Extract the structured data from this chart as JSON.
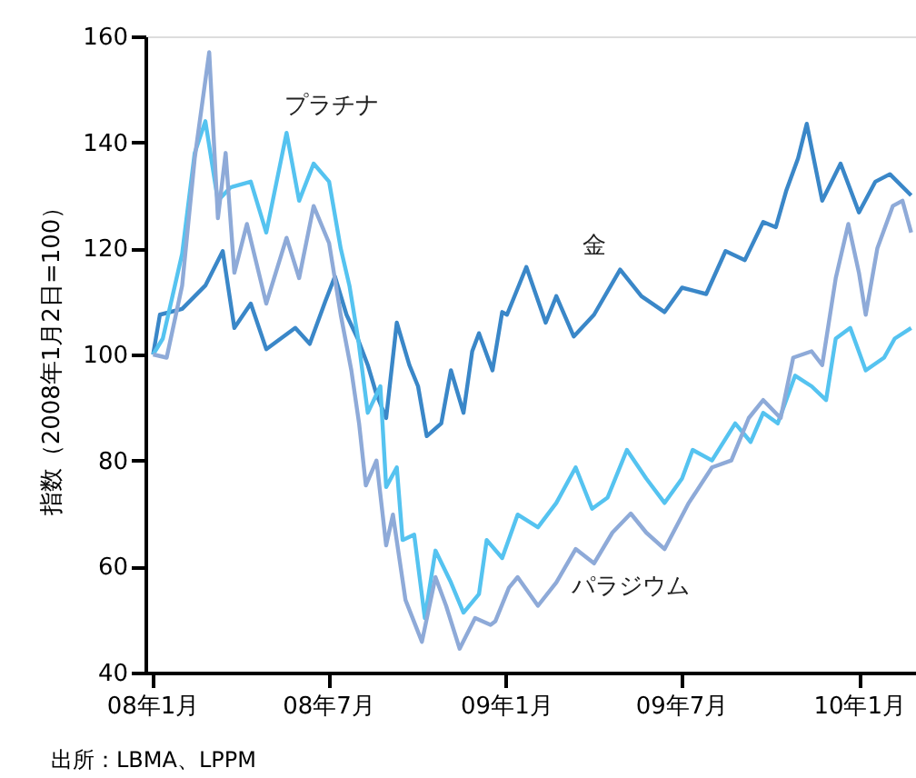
{
  "chart_data": {
    "type": "line",
    "ylabel": "指数（2008年1月2日=100）",
    "annotations": [
      "出所：LBMA、LPPM"
    ],
    "xlim": [
      "2007-12-25",
      "2010-03-01"
    ],
    "xticks": [
      {
        "value": "2008-01-01",
        "label": "08年1月"
      },
      {
        "value": "2008-07-01",
        "label": "08年7月"
      },
      {
        "value": "2009-01-01",
        "label": "09年1月"
      },
      {
        "value": "2009-07-01",
        "label": "09年7月"
      },
      {
        "value": "2010-01-01",
        "label": "10年1月"
      }
    ],
    "ylim": [
      40,
      160
    ],
    "yticks": [
      40,
      60,
      80,
      100,
      120,
      140,
      160
    ],
    "grid": false,
    "legend": false,
    "marker": "none",
    "line_style": "solid",
    "series": [
      {
        "name": "金",
        "color": "#3a87c8",
        "x": [
          "2008-01-02",
          "2008-01-09",
          "2008-02-01",
          "2008-02-25",
          "2008-03-14",
          "2008-03-26",
          "2008-04-12",
          "2008-04-28",
          "2008-05-28",
          "2008-06-12",
          "2008-06-28",
          "2008-07-08",
          "2008-07-20",
          "2008-08-01",
          "2008-08-11",
          "2008-08-20",
          "2008-08-30",
          "2008-09-10",
          "2008-09-23",
          "2008-10-02",
          "2008-10-11",
          "2008-10-26",
          "2008-11-05",
          "2008-11-18",
          "2008-11-27",
          "2008-12-04",
          "2008-12-18",
          "2008-12-28",
          "2009-01-02",
          "2009-01-22",
          "2009-02-11",
          "2009-02-22",
          "2009-03-12",
          "2009-04-02",
          "2009-04-29",
          "2009-05-21",
          "2009-06-14",
          "2009-07-02",
          "2009-07-27",
          "2009-08-16",
          "2009-09-05",
          "2009-09-24",
          "2009-10-07",
          "2009-10-18",
          "2009-10-30",
          "2009-11-08",
          "2009-11-24",
          "2009-12-13",
          "2010-01-01",
          "2010-01-18",
          "2010-02-02",
          "2010-02-24"
        ],
        "values": [
          100,
          107.5,
          108.6,
          113,
          119.5,
          105,
          109.6,
          101,
          105,
          102,
          110,
          114.7,
          107.5,
          102.8,
          98,
          92.5,
          88,
          106,
          98,
          94,
          84.6,
          87,
          97,
          89,
          100.6,
          104,
          97,
          108,
          107.5,
          116.5,
          106,
          111,
          103.4,
          107.5,
          116,
          111,
          108,
          112.6,
          111.4,
          119.5,
          117.8,
          125,
          124,
          131,
          137,
          143.5,
          129,
          136,
          126.8,
          132.6,
          134,
          130
        ]
      },
      {
        "name": "プラチナ",
        "color": "#55c3f0",
        "x": [
          "2008-01-02",
          "2008-01-12",
          "2008-02-01",
          "2008-02-14",
          "2008-02-25",
          "2008-03-09",
          "2008-03-22",
          "2008-04-12",
          "2008-04-28",
          "2008-05-19",
          "2008-06-01",
          "2008-06-16",
          "2008-07-02",
          "2008-07-14",
          "2008-07-23",
          "2008-08-01",
          "2008-08-11",
          "2008-08-24",
          "2008-08-30",
          "2008-09-10",
          "2008-09-16",
          "2008-09-28",
          "2008-10-09",
          "2008-10-20",
          "2008-11-05",
          "2008-11-18",
          "2008-12-04",
          "2008-12-12",
          "2008-12-28",
          "2009-01-13",
          "2009-02-03",
          "2009-02-22",
          "2009-03-14",
          "2009-03-31",
          "2009-04-16",
          "2009-05-06",
          "2009-05-26",
          "2009-06-14",
          "2009-07-02",
          "2009-07-13",
          "2009-08-02",
          "2009-08-26",
          "2009-09-11",
          "2009-09-24",
          "2009-10-09",
          "2009-10-27",
          "2009-11-13",
          "2009-11-28",
          "2009-12-08",
          "2009-12-23",
          "2010-01-08",
          "2010-01-27",
          "2010-02-07",
          "2010-02-24"
        ],
        "values": [
          100,
          103,
          119,
          138,
          144,
          129,
          131.5,
          132.6,
          123,
          141.8,
          129,
          136,
          132.6,
          120,
          113,
          103,
          89,
          94,
          75,
          78.7,
          65,
          66,
          50.3,
          63,
          57,
          51.3,
          54.8,
          65,
          61.6,
          69.8,
          67.4,
          72,
          78.7,
          70.9,
          73,
          82,
          76.6,
          72,
          76.6,
          82,
          80,
          87,
          83.5,
          89,
          87,
          96,
          94,
          91.4,
          103,
          105,
          97,
          99.4,
          103,
          105
        ]
      },
      {
        "name": "パラジウム",
        "color": "#8eaad8",
        "x": [
          "2008-01-02",
          "2008-01-16",
          "2008-02-01",
          "2008-02-14",
          "2008-02-29",
          "2008-03-09",
          "2008-03-17",
          "2008-03-26",
          "2008-04-08",
          "2008-04-28",
          "2008-05-19",
          "2008-06-01",
          "2008-06-16",
          "2008-07-02",
          "2008-07-14",
          "2008-07-25",
          "2008-08-02",
          "2008-08-09",
          "2008-08-20",
          "2008-08-30",
          "2008-09-06",
          "2008-09-19",
          "2008-10-06",
          "2008-10-20",
          "2008-10-31",
          "2008-11-14",
          "2008-11-30",
          "2008-12-16",
          "2008-12-21",
          "2009-01-04",
          "2009-01-13",
          "2009-02-03",
          "2009-02-22",
          "2009-03-14",
          "2009-04-02",
          "2009-04-21",
          "2009-05-10",
          "2009-05-26",
          "2009-06-14",
          "2009-07-09",
          "2009-08-02",
          "2009-08-22",
          "2009-09-09",
          "2009-09-24",
          "2009-10-12",
          "2009-10-25",
          "2009-11-13",
          "2009-11-24",
          "2009-12-08",
          "2009-12-21",
          "2010-01-01",
          "2010-01-08",
          "2010-01-20",
          "2010-02-05",
          "2010-02-15",
          "2010-02-24"
        ],
        "values": [
          100,
          99.4,
          113,
          137,
          157,
          125.7,
          138,
          115.4,
          124.6,
          109.6,
          122,
          114.4,
          128,
          121,
          107.5,
          97,
          87,
          75.3,
          80,
          64,
          69.8,
          53.7,
          45.8,
          58,
          52.6,
          44.5,
          50.3,
          49,
          49.7,
          56,
          58,
          52.6,
          57,
          63.3,
          60.6,
          66.4,
          70,
          66.4,
          63.3,
          72,
          78.7,
          80,
          88,
          91.4,
          88,
          99.4,
          100.6,
          98,
          114.4,
          124.6,
          115.4,
          107.5,
          120,
          128,
          129,
          123
        ]
      }
    ]
  }
}
